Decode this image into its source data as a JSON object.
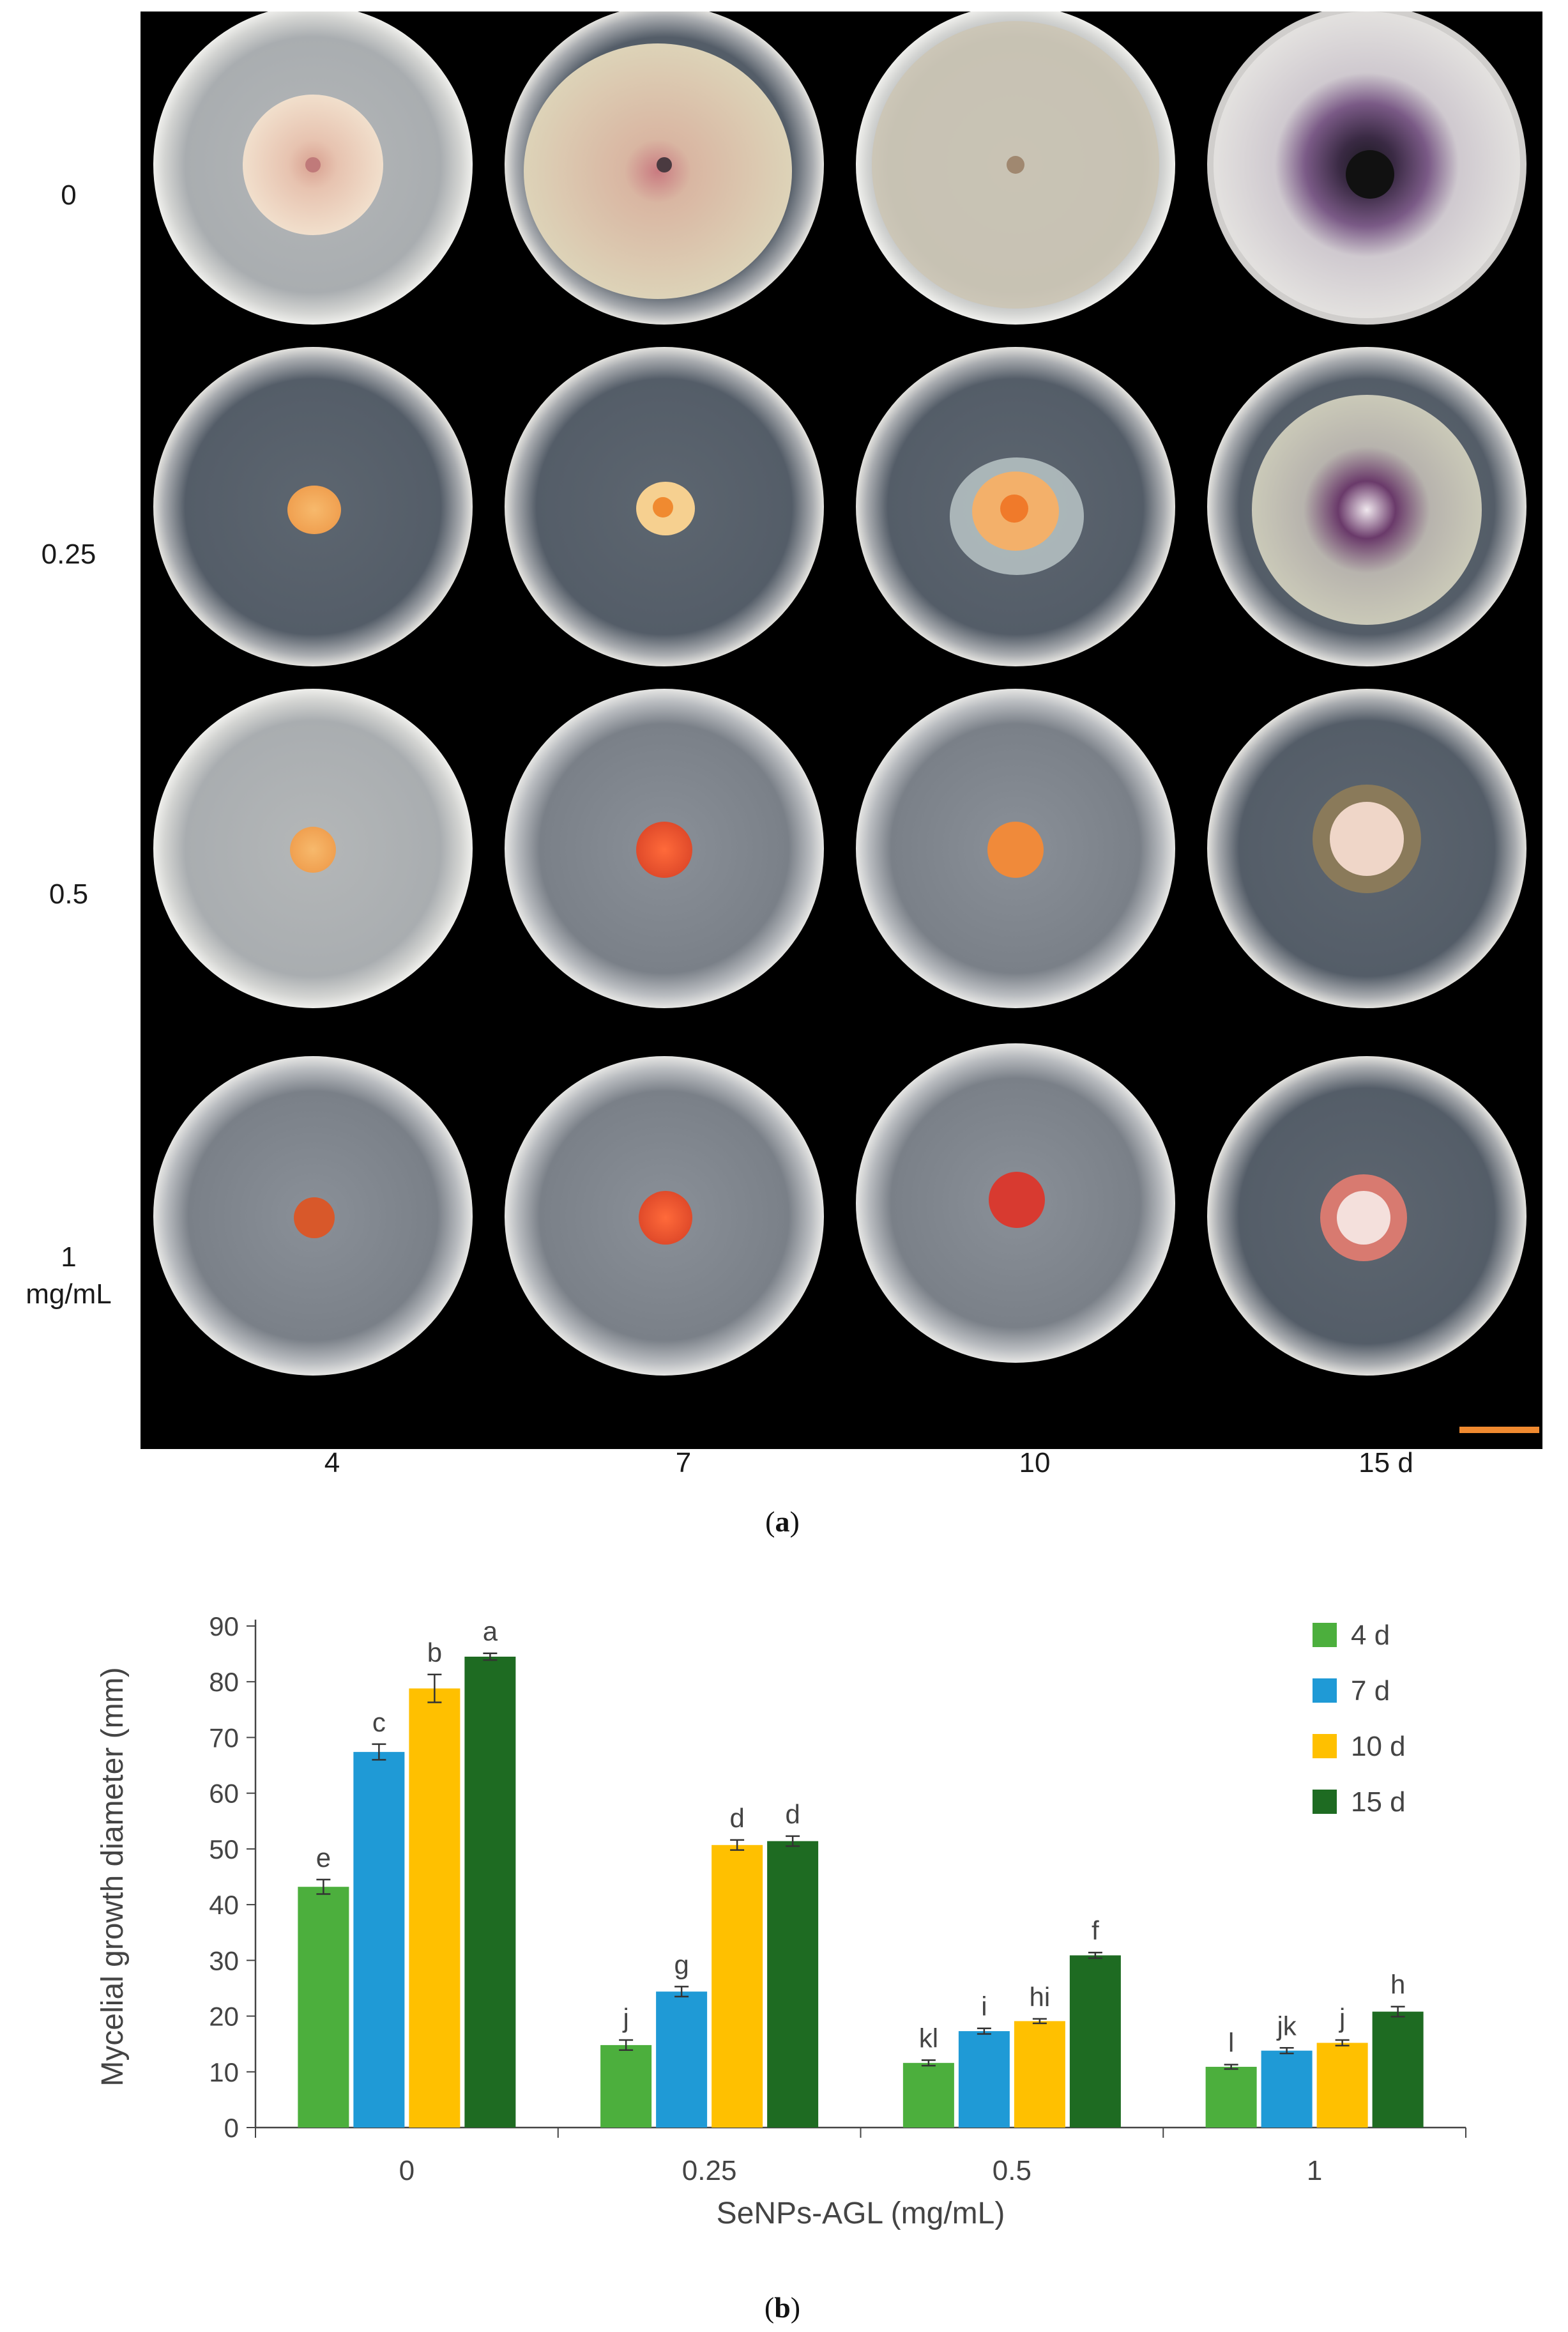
{
  "panel_a": {
    "label_open": "(",
    "label_letter": "a",
    "label_close": ")",
    "row_labels": [
      "0",
      "0.25",
      "0.5",
      "1",
      "mg/mL"
    ],
    "col_labels": [
      "4",
      "7",
      "10",
      "15 d"
    ],
    "colors": {
      "background": "#000000",
      "scale_bar": "#f08a30",
      "colony_orange": "#f0a050",
      "colony_red": "#e04a2a",
      "colony_purple": "#6a3a6a"
    }
  },
  "panel_b": {
    "label_open": "(",
    "label_letter": "b",
    "label_close": ")"
  },
  "chart_data": {
    "type": "bar",
    "title": "",
    "xlabel": "SeNPs-AGL (mg/mL)",
    "ylabel": "Mycelial growth diameter (mm)",
    "ylim": [
      0,
      90
    ],
    "yticks": [
      0,
      10,
      20,
      30,
      40,
      50,
      60,
      70,
      80,
      90
    ],
    "categories": [
      "0",
      "0.25",
      "0.5",
      "1"
    ],
    "legend_position": "top-right",
    "series": [
      {
        "name": "4 d",
        "color": "#4caf3d",
        "values": [
          43.2,
          14.8,
          11.6,
          10.9
        ],
        "errors": [
          1.3,
          0.9,
          0.5,
          0.4
        ],
        "letters": [
          "e",
          "j",
          "kl",
          "l"
        ]
      },
      {
        "name": "7 d",
        "color": "#1f9ad6",
        "values": [
          67.4,
          24.4,
          17.3,
          13.8
        ],
        "errors": [
          1.4,
          0.9,
          0.5,
          0.5
        ],
        "letters": [
          "c",
          "g",
          "i",
          "jk"
        ]
      },
      {
        "name": "10 d",
        "color": "#ffc000",
        "values": [
          78.8,
          50.7,
          19.1,
          15.2
        ],
        "errors": [
          2.5,
          0.9,
          0.4,
          0.5
        ],
        "letters": [
          "b",
          "d",
          "hi",
          "j"
        ]
      },
      {
        "name": "15 d",
        "color": "#1e6b22",
        "values": [
          84.5,
          51.4,
          30.9,
          20.8
        ],
        "errors": [
          0.6,
          0.9,
          0.5,
          0.9
        ],
        "letters": [
          "a",
          "d",
          "f",
          "h"
        ]
      }
    ]
  }
}
